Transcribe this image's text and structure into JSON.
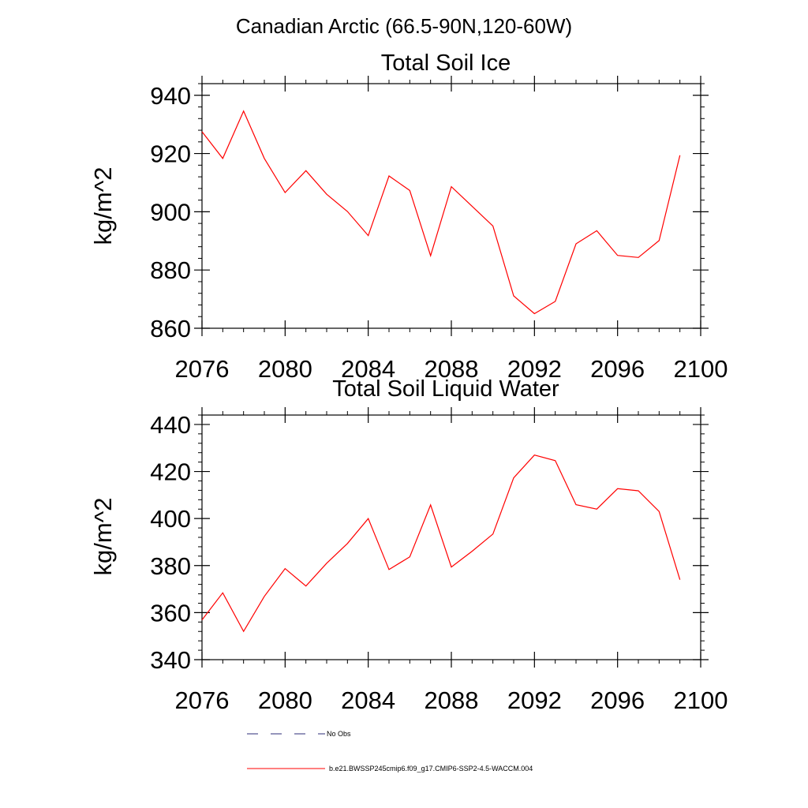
{
  "figure_title": "Canadian Arctic (66.5-90N,120-60W)",
  "legend": {
    "entries": [
      {
        "label": "No Obs",
        "style": "dashed",
        "color": "#2b2b7a"
      },
      {
        "label": "b.e21.BWSSP245cmip6.f09_g17.CMIP6-SSP2-4.5-WACCM.004",
        "style": "solid",
        "color": "#ff0000"
      }
    ]
  },
  "chart_data": [
    {
      "type": "line",
      "title": "Total Soil Ice",
      "xlabel": "",
      "ylabel": "kg/m^2",
      "xlim": [
        2076,
        2100
      ],
      "ylim": [
        860,
        944
      ],
      "xticks": [
        2076,
        2080,
        2084,
        2088,
        2092,
        2096,
        2100
      ],
      "yticks": [
        860,
        880,
        900,
        920,
        940
      ],
      "x": [
        2076,
        2077,
        2078,
        2079,
        2080,
        2081,
        2082,
        2083,
        2084,
        2085,
        2086,
        2087,
        2088,
        2089,
        2090,
        2091,
        2092,
        2093,
        2094,
        2095,
        2096,
        2097,
        2098,
        2099
      ],
      "series": [
        {
          "color": "#ff0000",
          "values": [
            927.5,
            918.3,
            934.6,
            918.3,
            906.6,
            914.1,
            906.0,
            900.1,
            891.8,
            912.3,
            907.3,
            884.9,
            908.6,
            901.9,
            895.1,
            871.1,
            865.0,
            869.2,
            889.0,
            893.5,
            885.0,
            884.3,
            890.1,
            919.4
          ]
        }
      ]
    },
    {
      "type": "line",
      "title": "Total Soil Liquid Water",
      "xlabel": "",
      "ylabel": "kg/m^2",
      "xlim": [
        2076,
        2100
      ],
      "ylim": [
        340,
        444
      ],
      "xticks": [
        2076,
        2080,
        2084,
        2088,
        2092,
        2096,
        2100
      ],
      "yticks": [
        340,
        360,
        380,
        400,
        420,
        440
      ],
      "x": [
        2076,
        2077,
        2078,
        2079,
        2080,
        2081,
        2082,
        2083,
        2084,
        2085,
        2086,
        2087,
        2088,
        2089,
        2090,
        2091,
        2092,
        2093,
        2094,
        2095,
        2096,
        2097,
        2098,
        2099
      ],
      "series": [
        {
          "color": "#ff0000",
          "values": [
            356.9,
            368.4,
            352.0,
            366.9,
            378.7,
            371.3,
            381.0,
            389.4,
            400.0,
            378.3,
            383.7,
            405.8,
            379.4,
            386.1,
            393.4,
            417.3,
            427.0,
            424.6,
            405.9,
            404.0,
            412.7,
            411.8,
            403.0,
            374.0
          ]
        }
      ]
    }
  ]
}
